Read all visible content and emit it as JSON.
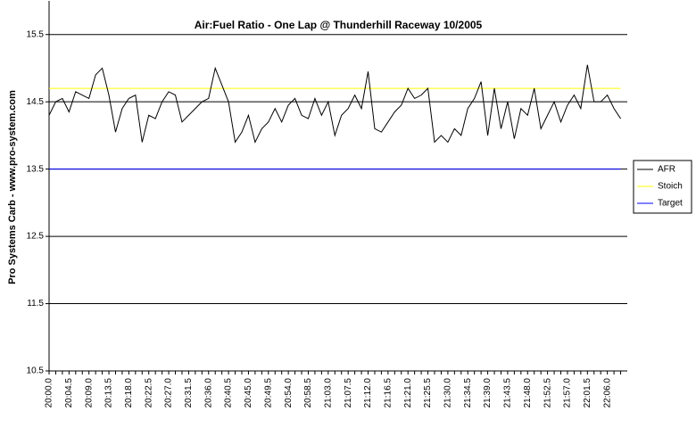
{
  "chart_data": {
    "type": "line",
    "title": "Air:Fuel Ratio - One Lap @ Thunderhill Raceway 10/2005",
    "y_label": "Pro Systems Carb - www.pro-system.com",
    "categories": [
      "20:00.0",
      null,
      null,
      "20:04.5",
      null,
      null,
      "20:09.0",
      null,
      null,
      "20:13.5",
      null,
      null,
      "20:18.0",
      null,
      null,
      "20:22.5",
      null,
      null,
      "20:27.0",
      null,
      null,
      "20:31.5",
      null,
      null,
      "20:36.0",
      null,
      null,
      "20:40.5",
      null,
      null,
      "20:45.0",
      null,
      null,
      "20:49.5",
      null,
      null,
      "20:54.0",
      null,
      null,
      "20:58.5",
      null,
      null,
      "21:03.0",
      null,
      null,
      "21:07.5",
      null,
      null,
      "21:12.0",
      null,
      null,
      "21:16.5",
      null,
      null,
      "21:21.0",
      null,
      null,
      "21:25.5",
      null,
      null,
      "21:30.0",
      null,
      null,
      "21:34.5",
      null,
      null,
      "21:39.0",
      null,
      null,
      "21:43.5",
      null,
      null,
      "21:48.0",
      null,
      null,
      "21:52.5",
      null,
      null,
      "21:57.0",
      null,
      null,
      "22:01.5",
      null,
      null,
      "22:06.0",
      null,
      null
    ],
    "series": [
      {
        "name": "AFR",
        "color": "#000000",
        "values": [
          14.3,
          14.5,
          14.55,
          14.35,
          14.65,
          14.6,
          14.55,
          14.9,
          15.0,
          14.6,
          14.05,
          14.4,
          14.55,
          14.6,
          13.9,
          14.3,
          14.25,
          14.5,
          14.65,
          14.6,
          14.2,
          14.3,
          14.4,
          14.5,
          14.55,
          15.0,
          14.75,
          14.5,
          13.9,
          14.05,
          14.3,
          13.9,
          14.1,
          14.2,
          14.4,
          14.2,
          14.45,
          14.55,
          14.3,
          14.25,
          14.55,
          14.3,
          14.5,
          14.0,
          14.3,
          14.4,
          14.6,
          14.4,
          14.95,
          14.1,
          14.05,
          14.2,
          14.35,
          14.45,
          14.7,
          14.55,
          14.6,
          14.7,
          13.9,
          14.0,
          13.9,
          14.1,
          14.0,
          14.4,
          14.55,
          14.8,
          14.0,
          14.7,
          14.1,
          14.5,
          13.95,
          14.4,
          14.3,
          14.7,
          14.1,
          14.3,
          14.5,
          14.2,
          14.45,
          14.6,
          14.4,
          15.05,
          14.5,
          14.5,
          14.6,
          14.4,
          14.25
        ]
      },
      {
        "name": "Stoich",
        "color": "#ffff00",
        "values": [
          14.7,
          14.7,
          14.7,
          14.7,
          14.7,
          14.7,
          14.7,
          14.7,
          14.7,
          14.7,
          14.7,
          14.7,
          14.7,
          14.7,
          14.7,
          14.7,
          14.7,
          14.7,
          14.7,
          14.7,
          14.7,
          14.7,
          14.7,
          14.7,
          14.7,
          14.7,
          14.7,
          14.7,
          14.7,
          14.7,
          14.7,
          14.7,
          14.7,
          14.7,
          14.7,
          14.7,
          14.7,
          14.7,
          14.7,
          14.7,
          14.7,
          14.7,
          14.7,
          14.7,
          14.7,
          14.7,
          14.7,
          14.7,
          14.7,
          14.7,
          14.7,
          14.7,
          14.7,
          14.7,
          14.7,
          14.7,
          14.7,
          14.7,
          14.7,
          14.7,
          14.7,
          14.7,
          14.7,
          14.7,
          14.7,
          14.7,
          14.7,
          14.7,
          14.7,
          14.7,
          14.7,
          14.7,
          14.7,
          14.7,
          14.7,
          14.7,
          14.7,
          14.7,
          14.7,
          14.7,
          14.7,
          14.7,
          14.7,
          14.7,
          14.7,
          14.7,
          14.7
        ]
      },
      {
        "name": "Target",
        "color": "#0000ff",
        "values": [
          13.5,
          13.5,
          13.5,
          13.5,
          13.5,
          13.5,
          13.5,
          13.5,
          13.5,
          13.5,
          13.5,
          13.5,
          13.5,
          13.5,
          13.5,
          13.5,
          13.5,
          13.5,
          13.5,
          13.5,
          13.5,
          13.5,
          13.5,
          13.5,
          13.5,
          13.5,
          13.5,
          13.5,
          13.5,
          13.5,
          13.5,
          13.5,
          13.5,
          13.5,
          13.5,
          13.5,
          13.5,
          13.5,
          13.5,
          13.5,
          13.5,
          13.5,
          13.5,
          13.5,
          13.5,
          13.5,
          13.5,
          13.5,
          13.5,
          13.5,
          13.5,
          13.5,
          13.5,
          13.5,
          13.5,
          13.5,
          13.5,
          13.5,
          13.5,
          13.5,
          13.5,
          13.5,
          13.5,
          13.5,
          13.5,
          13.5,
          13.5,
          13.5,
          13.5,
          13.5,
          13.5,
          13.5,
          13.5,
          13.5,
          13.5,
          13.5,
          13.5,
          13.5,
          13.5,
          13.5,
          13.5,
          13.5,
          13.5,
          13.5,
          13.5,
          13.5,
          13.5
        ]
      }
    ],
    "ylim": [
      10.5,
      16
    ],
    "yticks": [
      10.5,
      11.5,
      12.5,
      13.5,
      14.5,
      15.5
    ],
    "grid": true,
    "grid_color": "#000000",
    "legend": "right"
  }
}
